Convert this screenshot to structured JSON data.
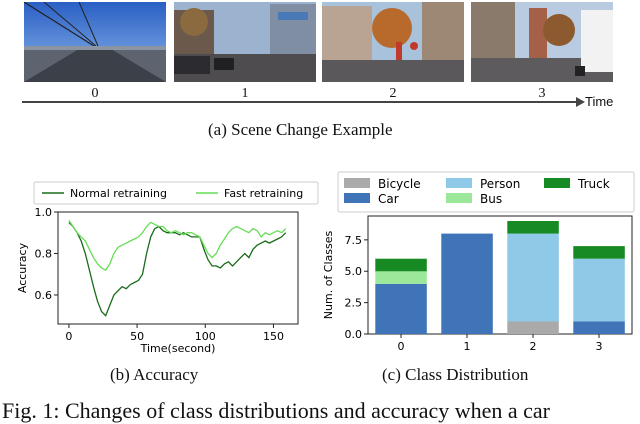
{
  "scene": {
    "frames": [
      {
        "label": "0"
      },
      {
        "label": "1"
      },
      {
        "label": "2"
      },
      {
        "label": "3"
      }
    ],
    "time_label": "Time",
    "caption": "(a) Scene Change Example"
  },
  "accuracy_caption": "(b) Accuracy",
  "distribution_caption": "(c) Class Distribution",
  "figure_caption": "Fig. 1: Changes of class distributions and accuracy when a car",
  "chart_data": [
    {
      "type": "line",
      "xlabel": "Time(second)",
      "ylabel": "Accuracy",
      "xlim": [
        -8,
        168
      ],
      "ylim": [
        0.46,
        1.0
      ],
      "xticks": [
        "0",
        "50",
        "100",
        "150"
      ],
      "xtick_values": [
        0,
        50,
        100,
        150
      ],
      "yticks": [
        "0.6",
        "0.8",
        "1.0"
      ],
      "ytick_values": [
        0.6,
        0.8,
        1.0
      ],
      "legend_position": "top",
      "series": [
        {
          "name": "Normal retraining",
          "color": "#1a6b1a",
          "x": [
            0,
            3,
            6,
            9,
            12,
            15,
            18,
            21,
            24,
            27,
            30,
            33,
            36,
            39,
            42,
            45,
            48,
            51,
            54,
            57,
            60,
            63,
            66,
            69,
            72,
            75,
            78,
            81,
            84,
            87,
            90,
            93,
            96,
            99,
            102,
            105,
            108,
            111,
            114,
            117,
            120,
            123,
            126,
            129,
            132,
            135,
            138,
            141,
            144,
            147,
            150,
            153,
            156,
            159
          ],
          "y": [
            0.95,
            0.93,
            0.9,
            0.86,
            0.8,
            0.72,
            0.64,
            0.57,
            0.52,
            0.5,
            0.55,
            0.6,
            0.62,
            0.64,
            0.63,
            0.65,
            0.66,
            0.67,
            0.7,
            0.8,
            0.88,
            0.92,
            0.93,
            0.91,
            0.9,
            0.9,
            0.9,
            0.89,
            0.9,
            0.89,
            0.88,
            0.88,
            0.88,
            0.82,
            0.77,
            0.74,
            0.74,
            0.73,
            0.75,
            0.76,
            0.74,
            0.76,
            0.78,
            0.8,
            0.78,
            0.82,
            0.84,
            0.85,
            0.86,
            0.85,
            0.86,
            0.87,
            0.88,
            0.9
          ]
        },
        {
          "name": "Fast retraining",
          "color": "#66dd55",
          "x": [
            0,
            3,
            6,
            9,
            12,
            15,
            18,
            21,
            24,
            27,
            30,
            33,
            36,
            39,
            42,
            45,
            48,
            51,
            54,
            57,
            60,
            63,
            66,
            69,
            72,
            75,
            78,
            81,
            84,
            87,
            90,
            93,
            96,
            99,
            102,
            105,
            108,
            111,
            114,
            117,
            120,
            123,
            126,
            129,
            132,
            135,
            138,
            141,
            144,
            147,
            150,
            153,
            156,
            159
          ],
          "y": [
            0.96,
            0.93,
            0.9,
            0.88,
            0.86,
            0.82,
            0.78,
            0.75,
            0.73,
            0.72,
            0.75,
            0.8,
            0.83,
            0.84,
            0.85,
            0.86,
            0.87,
            0.88,
            0.9,
            0.93,
            0.95,
            0.94,
            0.93,
            0.93,
            0.91,
            0.9,
            0.91,
            0.9,
            0.89,
            0.9,
            0.9,
            0.89,
            0.88,
            0.84,
            0.8,
            0.78,
            0.8,
            0.84,
            0.87,
            0.9,
            0.92,
            0.93,
            0.92,
            0.91,
            0.9,
            0.92,
            0.91,
            0.88,
            0.9,
            0.89,
            0.9,
            0.91,
            0.9,
            0.92
          ]
        }
      ]
    },
    {
      "type": "bar",
      "stacked": true,
      "ylabel": "Num. of Classes",
      "categories": [
        "0",
        "1",
        "2",
        "3"
      ],
      "ylim": [
        0,
        9.4
      ],
      "yticks": [
        "0.0",
        "2.5",
        "5.0",
        "7.5"
      ],
      "ytick_values": [
        0,
        2.5,
        5,
        7.5
      ],
      "legend_position": "top",
      "series": [
        {
          "name": "Bicycle",
          "color": "#aaaaaa",
          "values": [
            0,
            0,
            1,
            0
          ]
        },
        {
          "name": "Car",
          "color": "#3f74b8",
          "values": [
            4,
            8,
            0,
            1
          ]
        },
        {
          "name": "Person",
          "color": "#8ecae8",
          "values": [
            0,
            0,
            7,
            5
          ]
        },
        {
          "name": "Bus",
          "color": "#9ce89a",
          "values": [
            1,
            0,
            0,
            0
          ]
        },
        {
          "name": "Truck",
          "color": "#178a23",
          "values": [
            1,
            0,
            1,
            1
          ]
        }
      ]
    }
  ]
}
